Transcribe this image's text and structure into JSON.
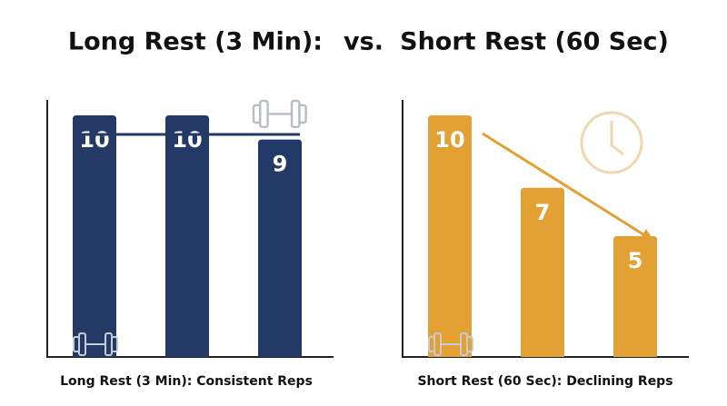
{
  "connector_text": "vs.",
  "chart_data": [
    {
      "type": "bar",
      "title": "Long Rest (3 Min):",
      "caption": "Long Rest (3 Min): Consistent Reps",
      "values": [
        10,
        10,
        9
      ],
      "color": "#233a67",
      "ylim": [
        0,
        10
      ],
      "trend": "flat"
    },
    {
      "type": "bar",
      "title": "Short Rest (60 Sec)",
      "caption": "Short Rest (60 Sec): Declining Reps",
      "values": [
        10,
        7,
        5
      ],
      "color": "#e3a033",
      "ylim": [
        0,
        10
      ],
      "trend": "declining"
    }
  ]
}
